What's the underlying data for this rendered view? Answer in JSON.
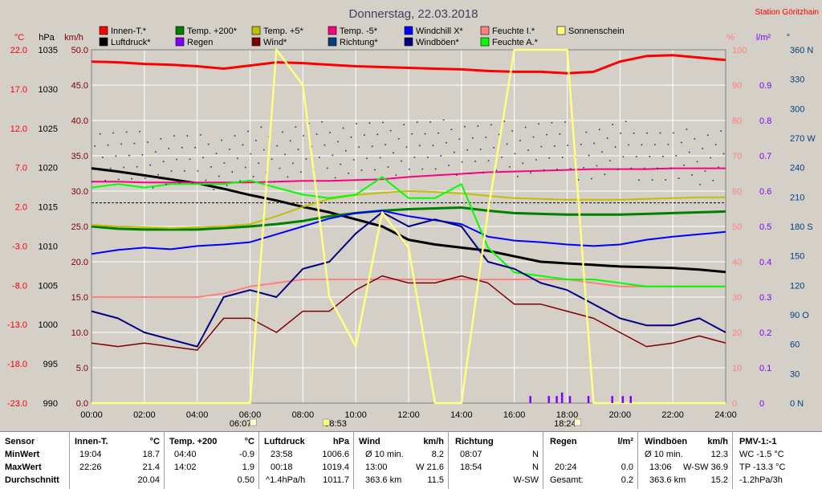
{
  "header": {
    "title": "Donnerstag, 22.03.2018",
    "station": "Station Göritzhain"
  },
  "legend": [
    {
      "label": "Innen-T.*",
      "color": "#ff0000"
    },
    {
      "label": "Luftdruck*",
      "color": "#000000"
    },
    {
      "label": "Temp. +200*",
      "color": "#008000"
    },
    {
      "label": "Regen",
      "color": "#8000ff"
    },
    {
      "label": "Temp. +5*",
      "color": "#c0c000"
    },
    {
      "label": "Wind*",
      "color": "#800000"
    },
    {
      "label": "Temp. -5*",
      "color": "#ff0080"
    },
    {
      "label": "Richtung*",
      "color": "#004080"
    },
    {
      "label": "Windchill X*",
      "color": "#0000ff"
    },
    {
      "label": "Windböen*",
      "color": "#000080"
    },
    {
      "label": "Feuchte I.*",
      "color": "#ff8080"
    },
    {
      "label": "Feuchte A.*",
      "color": "#00ff00"
    },
    {
      "label": "Sonnenschein",
      "color": "#ffff80"
    }
  ],
  "axes": {
    "temp": {
      "unit": "°C",
      "ticks": [
        "22.0",
        "17.0",
        "12.0",
        "7.0",
        "2.0",
        "-3.0",
        "-8.0",
        "-13.0",
        "-18.0",
        "-23.0"
      ],
      "color": "#ff0000"
    },
    "pressure": {
      "unit": "hPa",
      "ticks": [
        "1035",
        "1030",
        "1025",
        "1020",
        "1015",
        "1010",
        "1005",
        "1000",
        "995",
        "990"
      ],
      "color": "#000000"
    },
    "wind": {
      "unit": "km/h",
      "ticks": [
        "50.0",
        "45.0",
        "40.0",
        "35.0",
        "30.0",
        "25.0",
        "20.0",
        "15.0",
        "10.0",
        "5.0",
        "0.0"
      ],
      "color": "#800000"
    },
    "humidity": {
      "unit": "%",
      "ticks": [
        "100",
        "90",
        "80",
        "70",
        "60",
        "50",
        "40",
        "30",
        "20",
        "10",
        "0"
      ],
      "color": "#ff8080"
    },
    "rain": {
      "unit": "l/m²",
      "ticks": [
        "0.9",
        "0.8",
        "0.7",
        "0.6",
        "0.5",
        "0.4",
        "0.3",
        "0.2",
        "0.1",
        "0"
      ],
      "color": "#8000ff"
    },
    "direction": {
      "unit": "°",
      "ticks": [
        "360 N",
        "330",
        "300",
        "270 W",
        "240",
        "210",
        "180 S",
        "150",
        "120",
        "90 O",
        "60",
        "30",
        "0 N"
      ],
      "color": "#004080"
    },
    "time": {
      "ticks": [
        "00:00",
        "02:00",
        "04:00",
        "06:00",
        "08:00",
        "10:00",
        "12:00",
        "14:00",
        "16:00",
        "18:00",
        "20:00",
        "22:00",
        "24:00"
      ]
    },
    "sun_marks": [
      "06:07",
      "08:53",
      "18:24"
    ]
  },
  "chart_data": {
    "type": "line",
    "title": "Donnerstag, 22.03.2018",
    "x": [
      0,
      1,
      2,
      3,
      4,
      5,
      6,
      7,
      8,
      9,
      10,
      11,
      12,
      13,
      14,
      15,
      16,
      17,
      18,
      19,
      20,
      21,
      22,
      23,
      24
    ],
    "xlim": [
      0,
      24
    ],
    "series": [
      {
        "name": "Innen-T.*",
        "axis": "temp",
        "values": [
          20.5,
          20.4,
          20.2,
          20.1,
          19.9,
          19.6,
          20.0,
          20.4,
          20.3,
          20.1,
          19.9,
          19.8,
          19.7,
          19.6,
          19.5,
          19.3,
          19.2,
          19.2,
          19.0,
          19.2,
          20.5,
          21.2,
          21.3,
          21.0,
          20.7
        ]
      },
      {
        "name": "Luftdruck*",
        "axis": "pressure",
        "values": [
          1019.9,
          1019.5,
          1019.0,
          1018.5,
          1018.0,
          1017.3,
          1016.5,
          1015.8,
          1015.0,
          1014.3,
          1013.4,
          1012.5,
          1010.8,
          1010.2,
          1009.8,
          1009.4,
          1008.7,
          1008.0,
          1007.8,
          1007.6,
          1007.4,
          1007.3,
          1007.2,
          1007.0,
          1006.7
        ]
      },
      {
        "name": "Temp. +200*",
        "axis": "temp",
        "values": [
          -0.5,
          -0.8,
          -0.9,
          -0.9,
          -0.9,
          -0.7,
          -0.5,
          -0.2,
          0.2,
          0.8,
          1.2,
          1.5,
          1.7,
          1.8,
          1.9,
          1.5,
          1.2,
          1.1,
          1.0,
          1.0,
          1.0,
          1.1,
          1.2,
          1.3,
          1.4
        ]
      },
      {
        "name": "Temp. +5*",
        "axis": "temp",
        "values": [
          -0.3,
          -0.5,
          -0.6,
          -0.7,
          -0.6,
          -0.5,
          -0.2,
          0.8,
          2.0,
          3.0,
          3.5,
          3.8,
          4.0,
          3.9,
          3.7,
          3.4,
          3.1,
          3.0,
          2.9,
          2.9,
          2.9,
          3.0,
          3.1,
          3.2,
          3.2
        ]
      },
      {
        "name": "Temp. -5*",
        "axis": "temp",
        "values": [
          5.2,
          5.2,
          5.1,
          5.1,
          5.1,
          5.1,
          5.1,
          5.2,
          5.3,
          5.3,
          5.4,
          5.5,
          5.8,
          6.0,
          6.2,
          6.4,
          6.5,
          6.6,
          6.7,
          6.8,
          6.8,
          6.8,
          6.9,
          6.9,
          6.9
        ]
      },
      {
        "name": "Windchill X*",
        "axis": "temp",
        "values": [
          -4.0,
          -3.5,
          -3.2,
          -3.4,
          -3.0,
          -2.8,
          -2.5,
          -1.5,
          -0.5,
          0.5,
          1.2,
          1.5,
          0.8,
          0.3,
          -0.2,
          -1.8,
          -2.3,
          -2.5,
          -2.8,
          -3.0,
          -2.8,
          -2.2,
          -1.8,
          -1.5,
          -1.2
        ]
      },
      {
        "name": "Feuchte I.*",
        "axis": "humidity",
        "values": [
          30,
          30,
          30,
          30,
          30,
          31,
          33,
          34,
          35,
          35,
          35,
          35,
          35,
          35,
          35,
          35,
          35,
          35,
          35,
          34,
          33,
          33,
          33,
          33,
          33
        ]
      },
      {
        "name": "Feuchte A.*",
        "axis": "humidity",
        "values": [
          61,
          62,
          61,
          62,
          62,
          62,
          63,
          61,
          59,
          58,
          59,
          64,
          58,
          58,
          62,
          44,
          37,
          36,
          35,
          35,
          34,
          33,
          33,
          33,
          33
        ]
      },
      {
        "name": "Wind*",
        "axis": "wind",
        "values": [
          8.5,
          8,
          8.5,
          8,
          7.5,
          12,
          12,
          10,
          13,
          13,
          16,
          18,
          17,
          17,
          18,
          17,
          14,
          14,
          13,
          12,
          10,
          8,
          8.5,
          9.5,
          8.5
        ]
      },
      {
        "name": "Windböen*",
        "axis": "wind",
        "values": [
          13,
          12,
          10,
          9,
          8,
          15,
          16,
          15,
          19,
          20,
          24,
          27,
          25,
          26,
          25,
          20,
          19,
          17,
          16,
          14,
          12,
          11,
          11,
          12,
          10
        ]
      },
      {
        "name": "Richtung*",
        "axis": "direction",
        "values": [
          255,
          252,
          248,
          250,
          245,
          248,
          252,
          255,
          260,
          258,
          262,
          258,
          265,
          260,
          262,
          258,
          260,
          262,
          258,
          255,
          260,
          255,
          250,
          252,
          255
        ]
      },
      {
        "name": "Sonnenschein",
        "axis": "wind",
        "values": [
          0,
          0,
          0,
          0,
          0,
          0,
          0,
          50,
          45,
          15,
          8,
          27,
          22,
          0,
          0,
          27,
          50,
          50,
          50,
          0,
          0,
          0,
          0,
          0,
          0
        ]
      }
    ],
    "rain_bars": [
      {
        "time": 16.6,
        "value": 0.02
      },
      {
        "time": 17.3,
        "value": 0.02
      },
      {
        "time": 17.6,
        "value": 0.02
      },
      {
        "time": 17.8,
        "value": 0.03
      },
      {
        "time": 18.1,
        "value": 0.02
      },
      {
        "time": 18.8,
        "value": 0.02
      },
      {
        "time": 19.7,
        "value": 0.02
      },
      {
        "time": 20.1,
        "value": 0.02
      },
      {
        "time": 20.4,
        "value": 0.02
      }
    ],
    "grid": true
  },
  "stats": {
    "sensor": {
      "label": "Sensor",
      "rows": [
        "MinWert",
        "MaxWert",
        "Durchschnitt"
      ]
    },
    "innen": {
      "title": "Innen-T.",
      "unit": "°C",
      "min_t": "19:04",
      "min_v": "18.7",
      "max_t": "22:26",
      "max_v": "21.4",
      "avg_v": "20.04"
    },
    "temp200": {
      "title": "Temp. +200",
      "unit": "°C",
      "min_t": "04:40",
      "min_v": "-0.9",
      "max_t": "14:02",
      "max_v": "1.9",
      "avg_v": "0.50"
    },
    "luftdruck": {
      "title": "Luftdruck",
      "unit": "hPa",
      "min_t": "23:58",
      "min_v": "1006.6",
      "max_t": "00:18",
      "max_v": "1019.4",
      "avg_t": "^1.4hPa/h",
      "avg_v": "1011.7"
    },
    "wind": {
      "title": "Wind",
      "unit": "km/h",
      "min_t": "Ø 10 min.",
      "min_v": "8.2",
      "max_t": "13:00",
      "max_v": "W 21.6",
      "avg_t": "363.6 km",
      "avg_v": "11.5"
    },
    "richtung": {
      "title": "Richtung",
      "min_t": "08:07",
      "min_v": "N",
      "max_t": "18:54",
      "max_v": "N",
      "avg_v": "W-SW"
    },
    "regen": {
      "title": "Regen",
      "unit": "l/m²",
      "max_t": "20:24",
      "max_v": "0.0",
      "avg_t": "Gesamt:",
      "avg_v": "0.2"
    },
    "windboeen": {
      "title": "Windböen",
      "unit": "km/h",
      "min_t": "Ø 10 min.",
      "min_v": "12.3",
      "max_t": "13:06",
      "max_v": "W-SW 36.9",
      "avg_t": "363.6 km",
      "avg_v": "15.2"
    },
    "pmv": {
      "title": "PMV-1:-1",
      "min_v": "WC -1.5 °C",
      "max_v": "TP -13.3 °C",
      "avg_v": "-1.2hPa/3h"
    }
  }
}
